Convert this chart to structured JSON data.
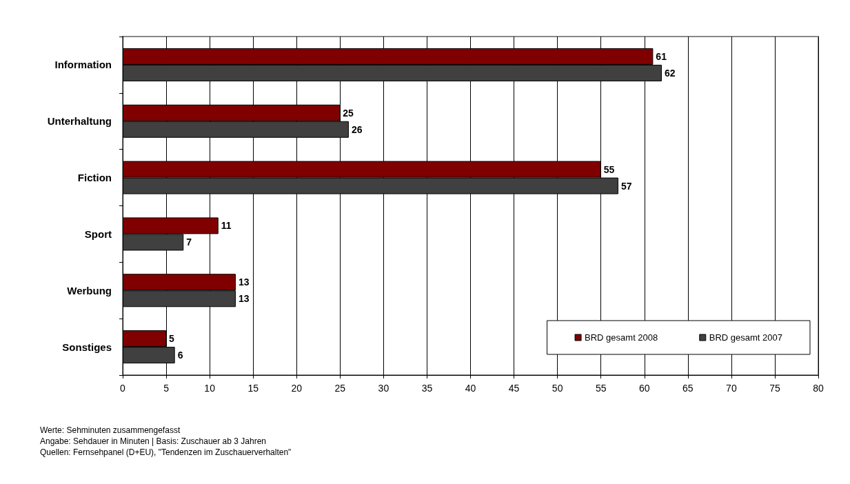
{
  "chart_data": {
    "type": "bar",
    "orientation": "horizontal",
    "categories": [
      "Information",
      "Unterhaltung",
      "Fiction",
      "Sport",
      "Werbung",
      "Sonstiges"
    ],
    "series": [
      {
        "name": "BRD gesamt 2008",
        "color": "#800000",
        "values": [
          61,
          25,
          55,
          11,
          13,
          5
        ]
      },
      {
        "name": "BRD gesamt 2007",
        "color": "#404040",
        "values": [
          62,
          26,
          57,
          7,
          13,
          6
        ]
      }
    ],
    "xlim": [
      0,
      80
    ],
    "xticks": [
      0,
      5,
      10,
      15,
      20,
      25,
      30,
      35,
      40,
      45,
      50,
      55,
      60,
      65,
      70,
      75,
      80
    ],
    "grid": "x",
    "legend": "bottom right",
    "data_labels": true,
    "annotations": [
      "Werte: Sehminuten zusammengefasst",
      "Angabe: Sehdauer in Minuten | Basis: Zuschauer ab 3 Jahren",
      "Quellen: Fernsehpanel (D+EU), \"Tendenzen im Zuschauerverhalten\""
    ]
  }
}
